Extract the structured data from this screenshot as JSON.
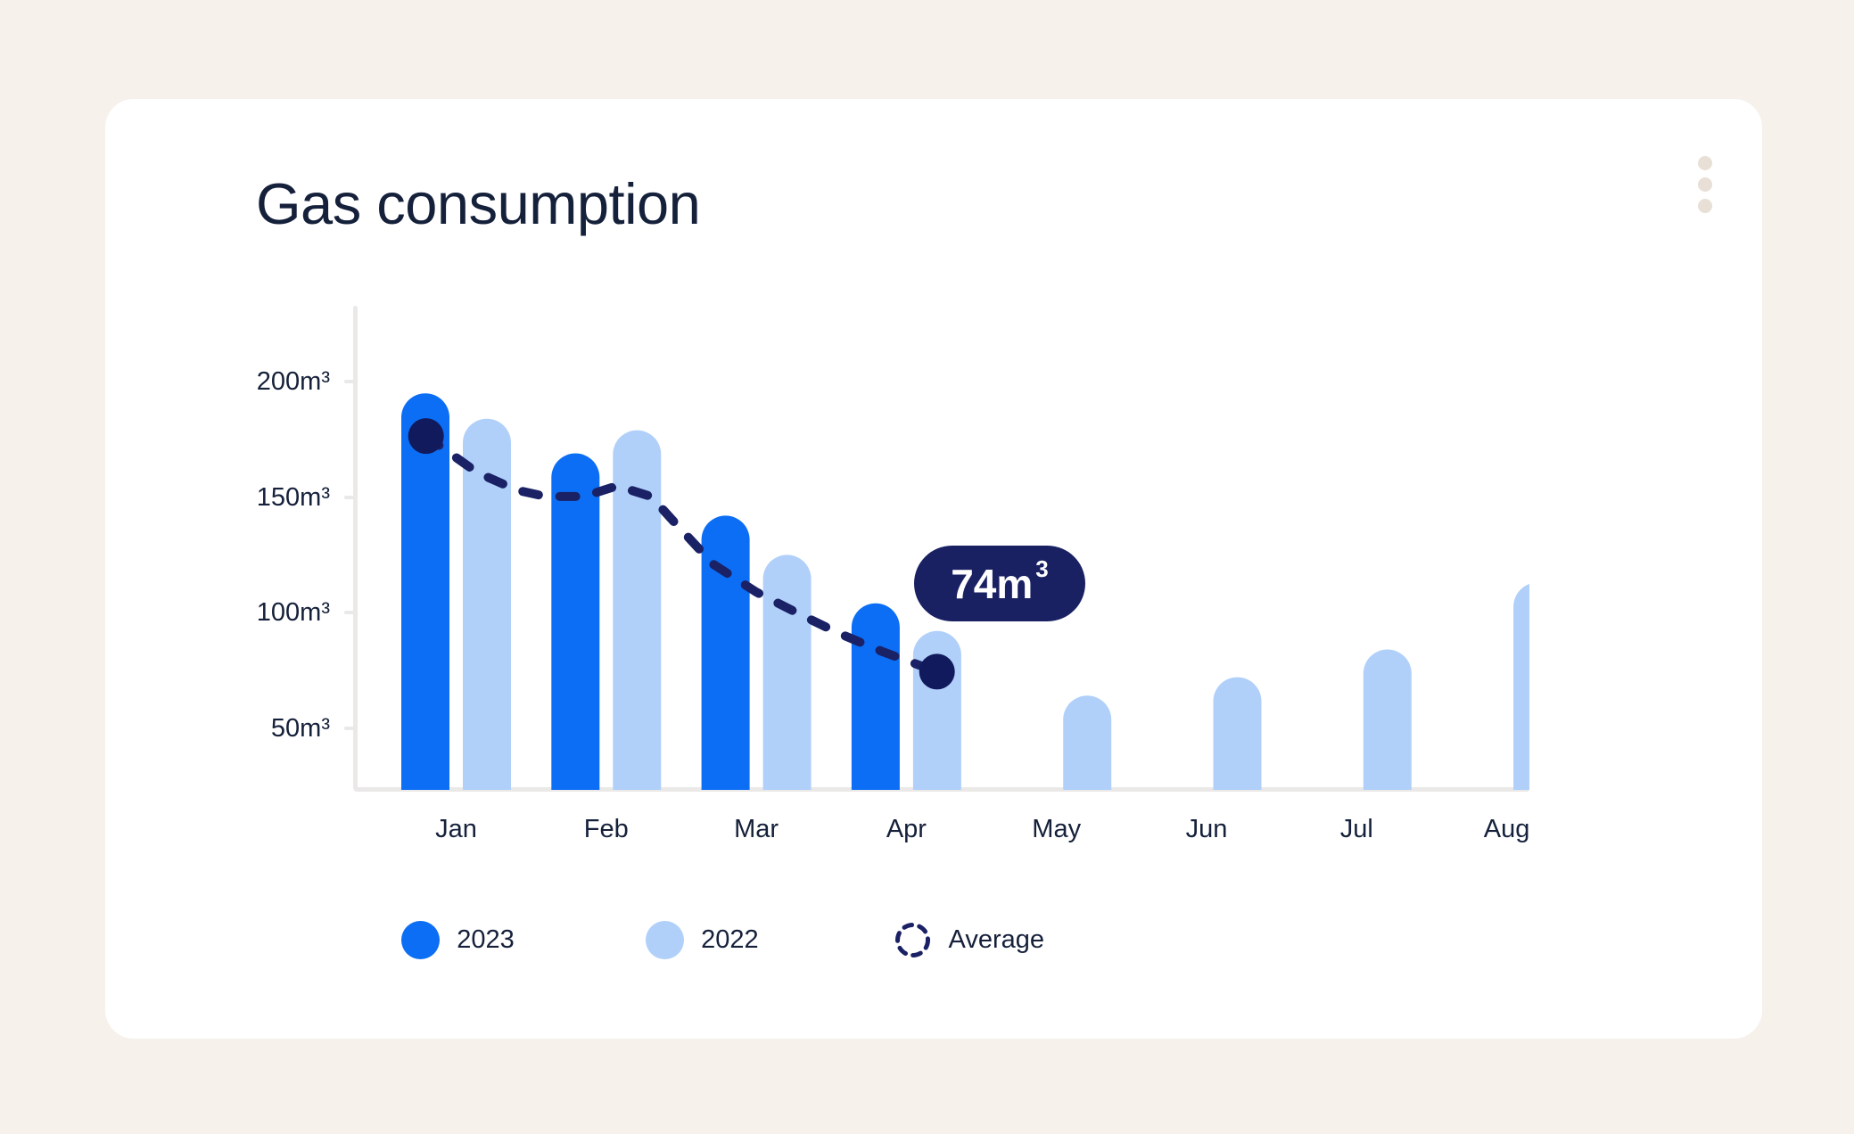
{
  "card": {
    "title": "Gas consumption",
    "menu_icon": "kebab-menu"
  },
  "colors": {
    "page_background": "#f6f1eb",
    "card_background": "#ffffff",
    "series_2023": "#0c6ef4",
    "series_2022": "#b0d0fa",
    "average_navy": "#1a2165",
    "dot_navy": "#101a5c",
    "tooltip_background": "#1a2163",
    "axis_gray": "#eae9e7",
    "text_navy": "#15203a",
    "kebab_dots": "#e8e0d6"
  },
  "chart_data": {
    "type": "bar",
    "title": "Gas consumption",
    "unit": "m³",
    "categories": [
      "Jan",
      "Feb",
      "Mar",
      "Apr",
      "May",
      "Jun",
      "Jul",
      "Aug"
    ],
    "series": [
      {
        "name": "2023",
        "color": "#0c6ef4",
        "values": [
          195,
          169,
          142,
          104,
          null,
          null,
          null,
          null
        ]
      },
      {
        "name": "2022",
        "color": "#b0d0fa",
        "values": [
          184,
          179,
          125,
          92,
          64,
          72,
          84,
          113
        ]
      }
    ],
    "average_line": {
      "name": "Average",
      "style": "dashed",
      "color": "#1a2165",
      "waypoints": [
        {
          "x": 477.7,
          "value": 176.5
        },
        {
          "x": 535,
          "value": 160.7
        },
        {
          "x": 580,
          "value": 153.0
        },
        {
          "x": 612,
          "value": 150.3
        },
        {
          "x": 655,
          "value": 150.3
        },
        {
          "x": 692,
          "value": 154.9
        },
        {
          "x": 730,
          "value": 150.3
        },
        {
          "x": 762,
          "value": 136.7
        },
        {
          "x": 800,
          "value": 120.9
        },
        {
          "x": 848,
          "value": 108.9
        },
        {
          "x": 895,
          "value": 99.6
        },
        {
          "x": 940,
          "value": 91.1
        },
        {
          "x": 990,
          "value": 83.0
        },
        {
          "x": 1050.7,
          "value": 74.4
        }
      ],
      "endpoint_dots": [
        {
          "x": 477.7,
          "value": 176.5,
          "on": "Jan-2023"
        },
        {
          "x": 1050.7,
          "value": 74.4,
          "on": "Apr-2022"
        }
      ]
    },
    "y_axis": {
      "tick_labels": [
        "200m³",
        "150m³",
        "100m³",
        "50m³"
      ],
      "tick_values": [
        200,
        150,
        100,
        50
      ],
      "baseline_value": 23.3,
      "grid": false
    },
    "tooltip": {
      "text": "74m",
      "sup": "3",
      "value": 74,
      "month": "Apr",
      "series": "2022"
    },
    "legend": [
      {
        "label": "2023",
        "swatch": "solid-blue"
      },
      {
        "label": "2022",
        "swatch": "solid-lightblue"
      },
      {
        "label": "Average",
        "swatch": "dashed-circle"
      }
    ],
    "legend_position": "bottom",
    "x_axis_clipped_last_label": true
  }
}
